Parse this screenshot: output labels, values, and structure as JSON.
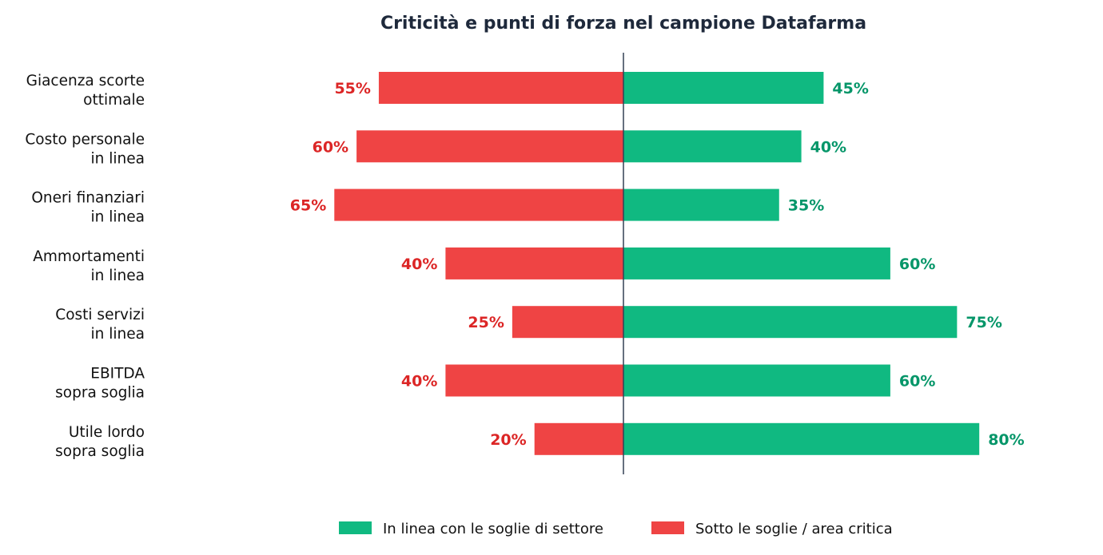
{
  "chart_data": {
    "type": "bar",
    "orientation": "horizontal-diverging",
    "title": "Criticità e punti di forza nel campione Datafarma",
    "xlabel": "",
    "ylabel": "",
    "grid": false,
    "xlim": [
      -70,
      90
    ],
    "value_suffix": "%",
    "categories": [
      [
        "Giacenza scorte",
        "ottimale"
      ],
      [
        "Costo personale",
        "in linea"
      ],
      [
        "Oneri finanziari",
        "in linea"
      ],
      [
        "Ammortamenti",
        "in linea"
      ],
      [
        "Costi servizi",
        "in linea"
      ],
      [
        "EBITDA",
        "sopra soglia"
      ],
      [
        "Utile lordo",
        "sopra soglia"
      ]
    ],
    "series": [
      {
        "name": "In linea con le soglie di settore",
        "side": "right",
        "color": "#10b981",
        "label_color": "#059669",
        "values": [
          45,
          40,
          35,
          60,
          75,
          60,
          80
        ]
      },
      {
        "name": "Sotto le soglie / area critica",
        "side": "left",
        "color": "#ef4444",
        "label_color": "#dc2626",
        "values": [
          55,
          60,
          65,
          40,
          25,
          40,
          20
        ]
      }
    ],
    "legend": {
      "position": "bottom-center",
      "entries": [
        "In linea con le soglie di settore",
        "Sotto le soglie / area critica"
      ]
    },
    "center_line_color": "#334155"
  }
}
